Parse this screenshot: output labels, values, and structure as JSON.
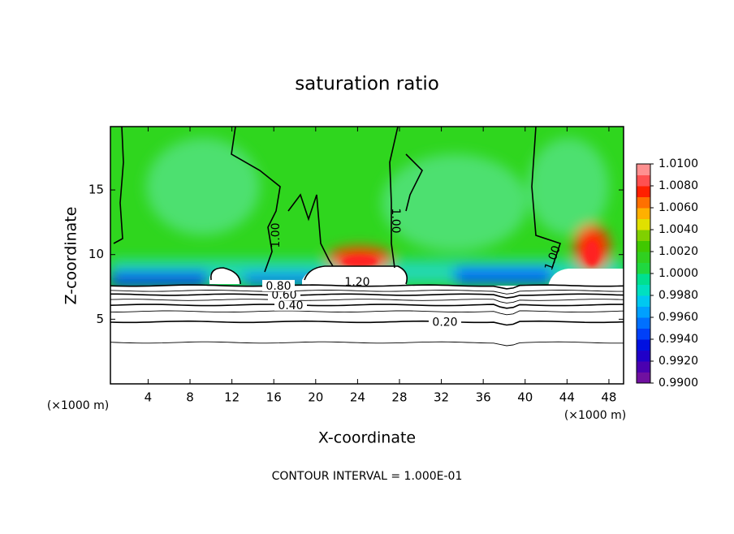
{
  "chart_data": {
    "type": "contour",
    "title": "saturation ratio",
    "x_label": "X-coordinate",
    "y_label": "Z-coordinate",
    "x_unit": "(×1000 m)",
    "y_unit": "(×1000 m)",
    "footer": "CONTOUR INTERVAL = 1.000E-01",
    "xlim": [
      0.4,
      49.4
    ],
    "ylim": [
      0,
      19.9
    ],
    "xticks": [
      4,
      8,
      12,
      16,
      20,
      24,
      28,
      32,
      36,
      40,
      44,
      48
    ],
    "yticks": [
      5,
      10,
      15
    ],
    "contours": [
      {
        "z": 3.2
      },
      {
        "label": "0.20",
        "z": 4.8
      },
      {
        "z": 5.6
      },
      {
        "label": "0.40",
        "z": 6.1
      },
      {
        "z": 6.5
      },
      {
        "label": "0.60",
        "z": 6.9
      },
      {
        "z": 7.2
      },
      {
        "label": "0.80",
        "z": 7.6
      }
    ],
    "contour_labels": [
      "1.00",
      "1.00",
      "1.00",
      "1.20"
    ],
    "colorbar": {
      "lim": [
        0.99,
        1.01
      ],
      "ticks": [
        {
          "value": 0.99,
          "label": "0.9900"
        },
        {
          "value": 0.992,
          "label": "0.9920"
        },
        {
          "value": 0.994,
          "label": "0.9940"
        },
        {
          "value": 0.996,
          "label": "0.9960"
        },
        {
          "value": 0.998,
          "label": "0.9980"
        },
        {
          "value": 1.0,
          "label": "1.0000"
        },
        {
          "value": 1.002,
          "label": "1.0020"
        },
        {
          "value": 1.004,
          "label": "1.0040"
        },
        {
          "value": 1.006,
          "label": "1.0060"
        },
        {
          "value": 1.008,
          "label": "1.0080"
        },
        {
          "value": 1.01,
          "label": "1.0100"
        }
      ],
      "colors": [
        "#7010a0",
        "#4a00b0",
        "#2000c8",
        "#0010e0",
        "#0040f8",
        "#0070ff",
        "#00a0ff",
        "#00c8f0",
        "#00e0c0",
        "#00e090",
        "#20d840",
        "#30d020",
        "#40c800",
        "#80d000",
        "#e0e000",
        "#ffb000",
        "#ff7000",
        "#ff2000",
        "#ff5050",
        "#ff9090"
      ]
    }
  }
}
